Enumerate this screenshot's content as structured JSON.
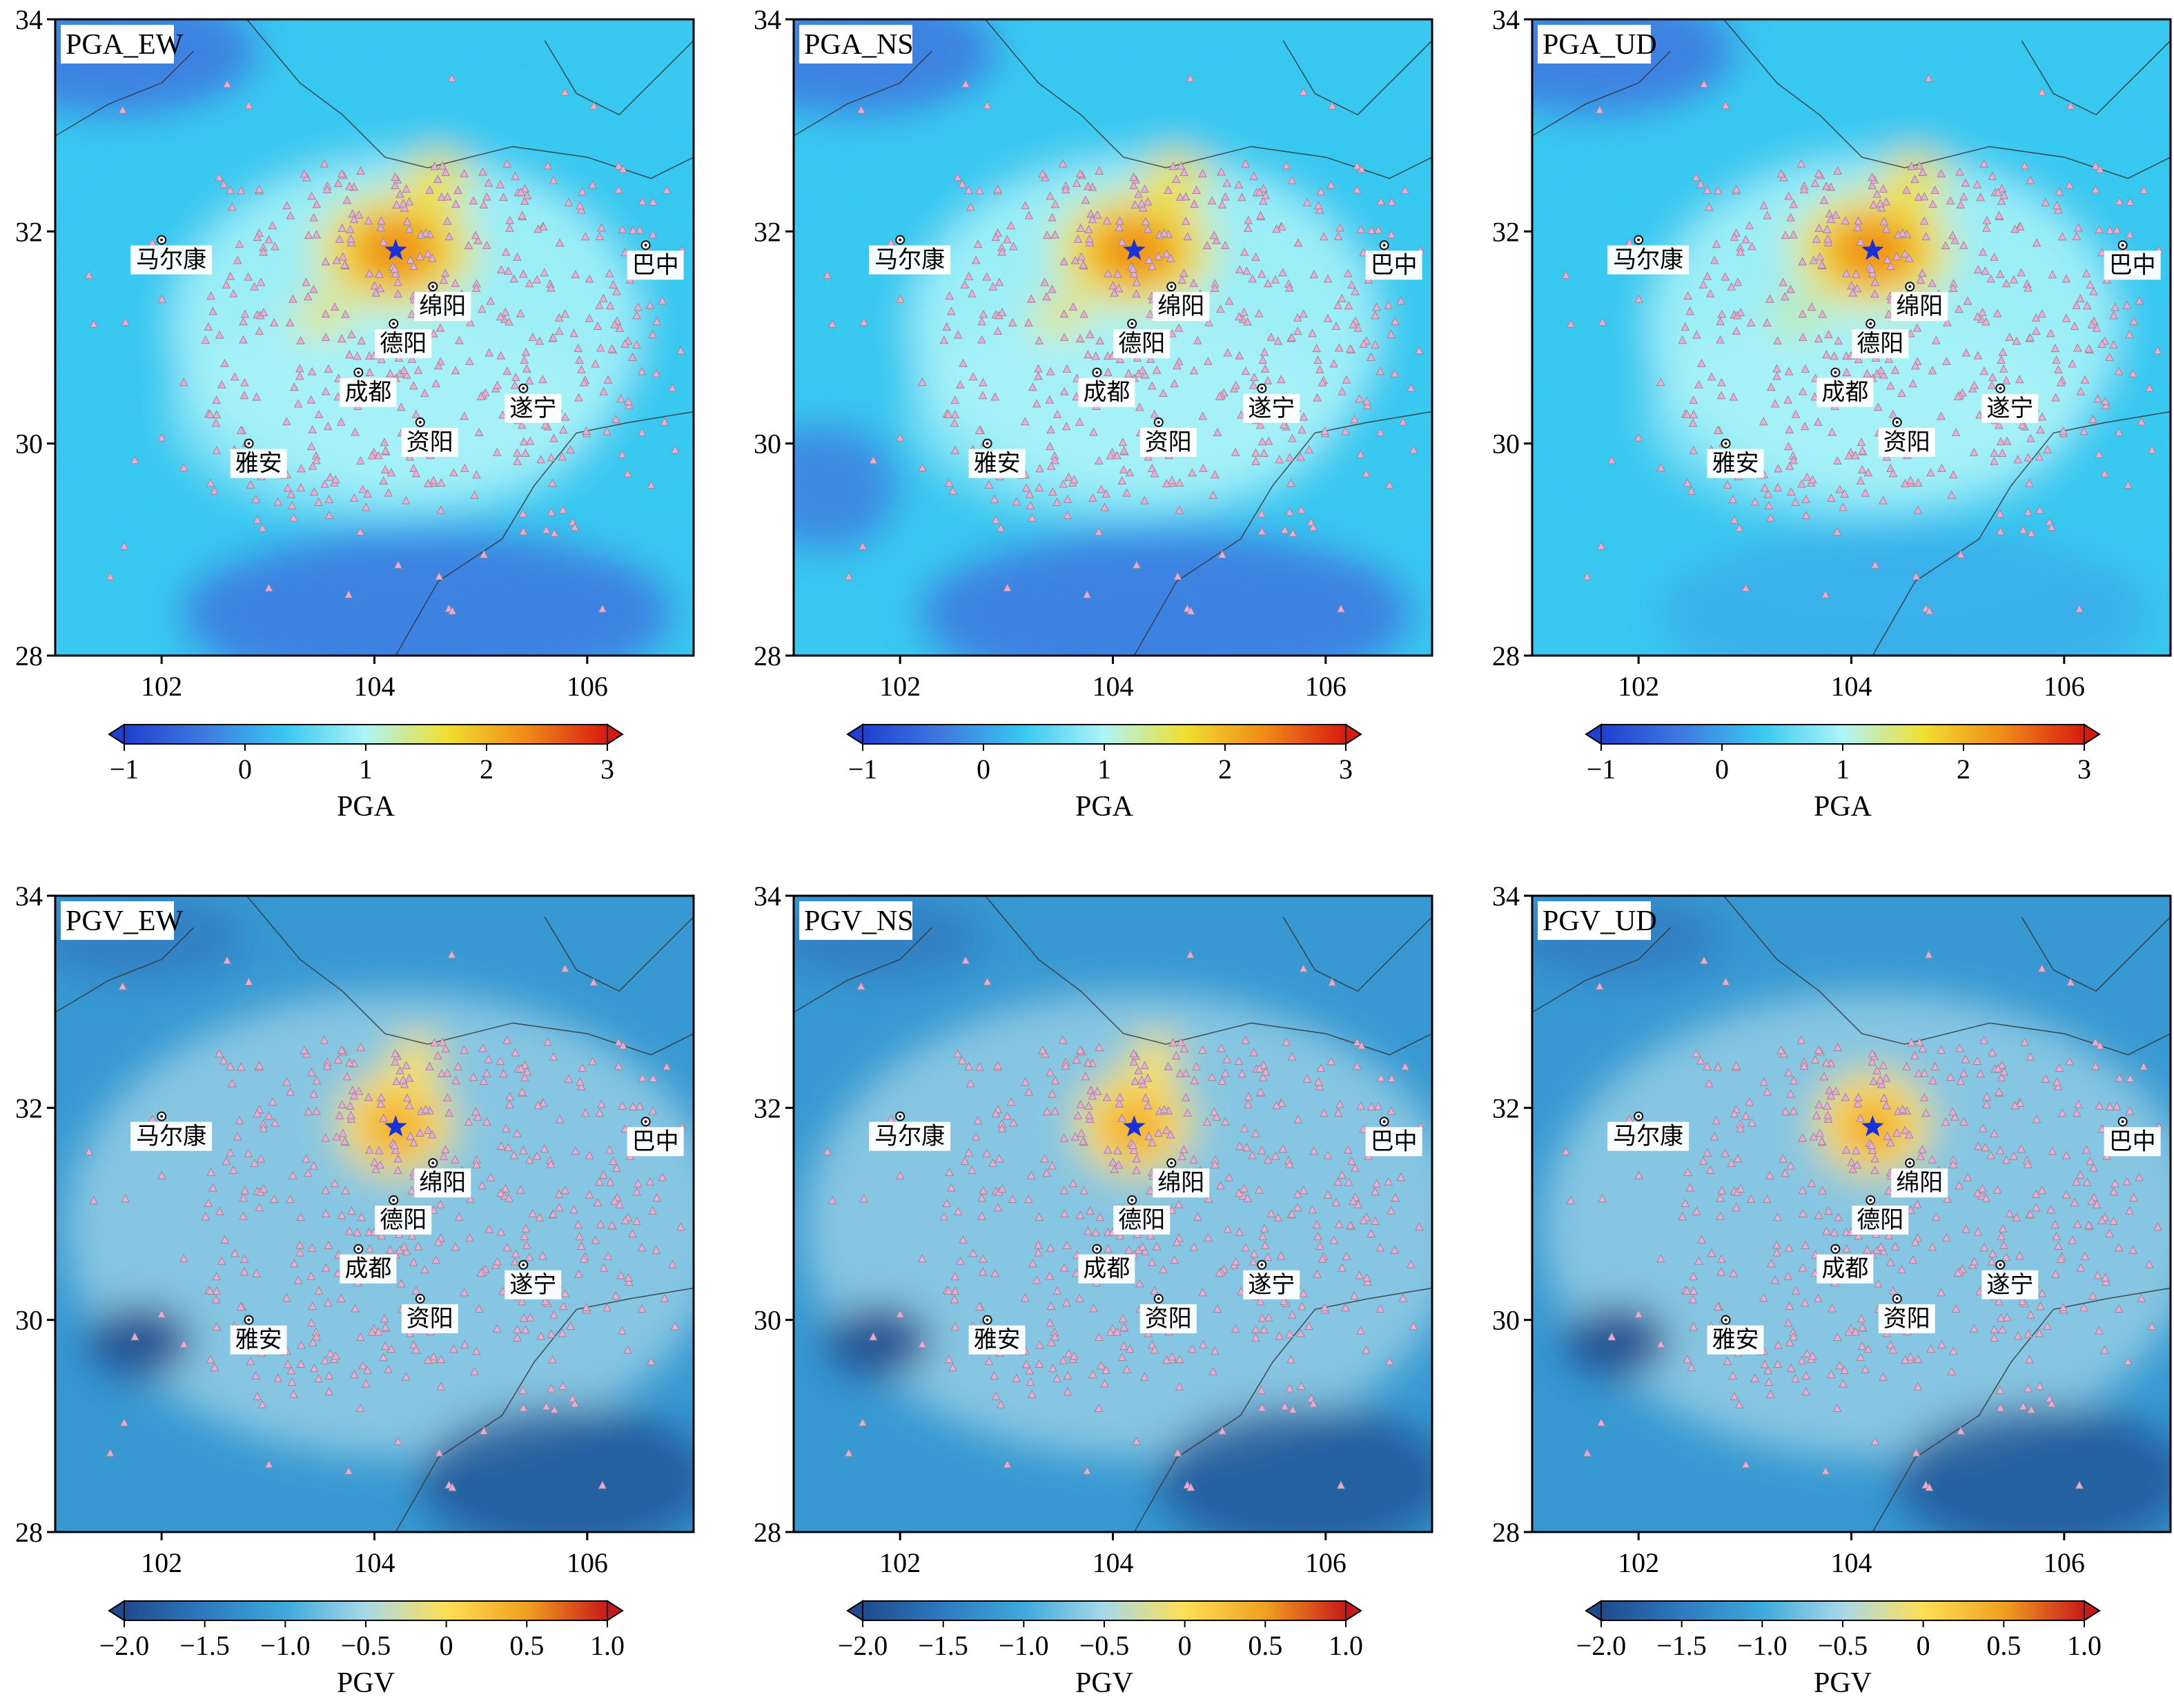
{
  "figure": {
    "x_ticks": [
      "102",
      "104",
      "106"
    ],
    "y_ticks": [
      "28",
      "30",
      "32",
      "34"
    ],
    "panels": [
      {
        "label": "PGA_EW",
        "scale": "pga",
        "colorbar_label": "PGA",
        "cb_ticks": [
          "−1",
          "0",
          "1",
          "2",
          "3"
        ]
      },
      {
        "label": "PGA_NS",
        "scale": "pga",
        "colorbar_label": "PGA",
        "cb_ticks": [
          "−1",
          "0",
          "1",
          "2",
          "3"
        ]
      },
      {
        "label": "PGA_UD",
        "scale": "pga",
        "colorbar_label": "PGA",
        "cb_ticks": [
          "−1",
          "0",
          "1",
          "2",
          "3"
        ]
      },
      {
        "label": "PGV_EW",
        "scale": "pgv",
        "colorbar_label": "PGV",
        "cb_ticks": [
          "−2.0",
          "−1.5",
          "−1.0",
          "−0.5",
          "0",
          "0.5",
          "1.0"
        ]
      },
      {
        "label": "PGV_NS",
        "scale": "pgv",
        "colorbar_label": "PGV",
        "cb_ticks": [
          "−2.0",
          "−1.5",
          "−1.0",
          "−0.5",
          "0",
          "0.5",
          "1.0"
        ]
      },
      {
        "label": "PGV_UD",
        "scale": "pgv",
        "colorbar_label": "PGV",
        "cb_ticks": [
          "−2.0",
          "−1.5",
          "−1.0",
          "−0.5",
          "0",
          "0.5",
          "1.0"
        ]
      }
    ],
    "cities": [
      {
        "name": "马尔康",
        "lon": 102.0,
        "lat": 31.92
      },
      {
        "name": "绵阳",
        "lon": 104.55,
        "lat": 31.48
      },
      {
        "name": "德阳",
        "lon": 104.18,
        "lat": 31.13
      },
      {
        "name": "成都",
        "lon": 103.85,
        "lat": 30.67
      },
      {
        "name": "资阳",
        "lon": 104.43,
        "lat": 30.2
      },
      {
        "name": "遂宁",
        "lon": 105.4,
        "lat": 30.52
      },
      {
        "name": "雅安",
        "lon": 102.82,
        "lat": 30.0
      },
      {
        "name": "巴中",
        "lon": 106.55,
        "lat": 31.87
      }
    ],
    "epicenter": {
      "lon": 104.2,
      "lat": 31.82
    },
    "extent": {
      "lon_min": 101.0,
      "lon_max": 107.0,
      "lat_min": 28.0,
      "lat_max": 34.0
    },
    "colors": {
      "pga_ramp": [
        "#1f3fd0",
        "#3f7ae0",
        "#38c8f0",
        "#aef4f8",
        "#f0e030",
        "#f08a18",
        "#d81a10"
      ],
      "pgv_ramp": [
        "#1f4a8c",
        "#2e7ac0",
        "#3ea9dc",
        "#a8d8e8",
        "#ffe055",
        "#f0a020",
        "#c81a1a"
      ],
      "station_fill": "#f0a8d8",
      "station_stroke": "#909090",
      "epicenter": "#1a2fd8"
    }
  }
}
